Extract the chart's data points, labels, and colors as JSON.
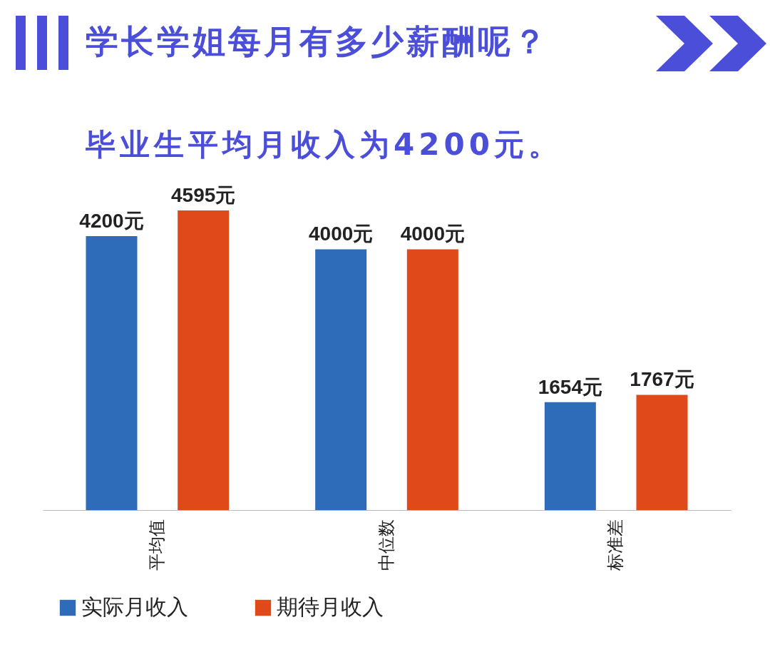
{
  "chart_data": {
    "type": "bar",
    "title": "学长学姐每月有多少薪酬呢？",
    "subtitle": "毕业生平均月收入为4200元。",
    "categories": [
      "平均值",
      "中位数",
      "标准差"
    ],
    "series": [
      {
        "name": "实际月收入",
        "color": "#2e6bb8",
        "values": [
          4200,
          4000,
          1654
        ],
        "value_labels": [
          "4200元",
          "4000元",
          "1654元"
        ]
      },
      {
        "name": "期待月收入",
        "color": "#e0491a",
        "values": [
          4595,
          4000,
          1767
        ],
        "value_labels": [
          "4595元",
          "4000元",
          "1767元"
        ]
      }
    ],
    "legend": "bottom",
    "grid": false
  }
}
